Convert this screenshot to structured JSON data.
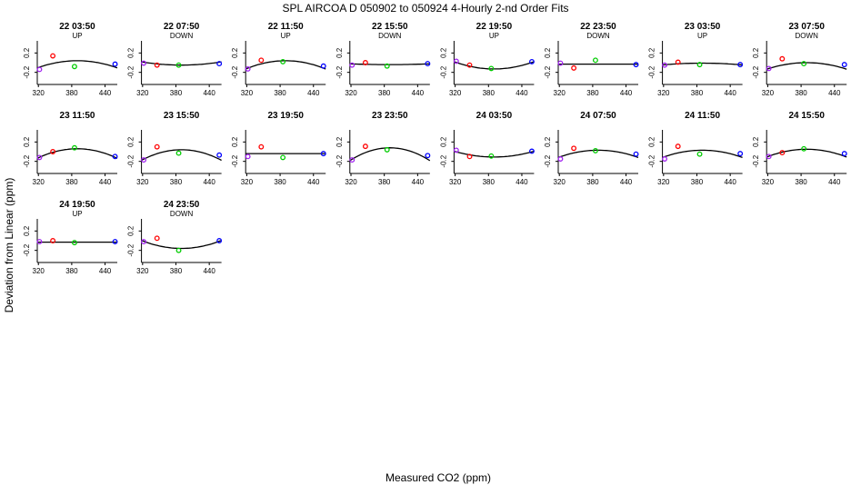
{
  "title": "SPL   AIRCOA D   050902 to 050924   4-Hourly 2-nd Order Fits",
  "xlabel": "Measured CO2 (ppm)",
  "ylabel": "Deviation from Linear (ppm)",
  "colors": {
    "point_1": "#a020f0",
    "point_2": "#ff0000",
    "point_3": "#00cc00",
    "point_4": "#0000ff",
    "curve": "#000000"
  },
  "chart_data": [
    {
      "type": "scatter",
      "title": "22 03:50",
      "subtitle": "UP",
      "x": [
        322,
        346,
        385,
        458
      ],
      "y": [
        -0.14,
        0.14,
        -0.08,
        -0.03
      ],
      "fit": [
        0.04,
        -2.85e-05
      ],
      "xlim": [
        318,
        462
      ],
      "ylim": [
        -0.45,
        0.45
      ],
      "xticks": [
        320,
        380,
        440
      ],
      "yticks": [
        0.2,
        -0.2
      ]
    },
    {
      "type": "scatter",
      "title": "22 07:50",
      "subtitle": "DOWN",
      "x": [
        322,
        346,
        385,
        458
      ],
      "y": [
        -0.01,
        -0.05,
        -0.05,
        -0.02
      ],
      "fit": [
        -0.05,
        1.3e-05
      ],
      "xlim": [
        318,
        462
      ],
      "ylim": [
        -0.45,
        0.45
      ],
      "xticks": [
        320,
        380,
        440
      ],
      "yticks": [
        0.2,
        -0.2
      ]
    },
    {
      "type": "scatter",
      "title": "22 11:50",
      "subtitle": "UP",
      "x": [
        322,
        346,
        385,
        458
      ],
      "y": [
        -0.13,
        0.05,
        0.02,
        -0.07
      ],
      "fit": [
        0.04,
        -3.3e-05
      ],
      "xlim": [
        318,
        462
      ],
      "ylim": [
        -0.45,
        0.45
      ],
      "xticks": [
        320,
        380,
        440
      ],
      "yticks": [
        0.2,
        -0.2
      ]
    },
    {
      "type": "scatter",
      "title": "22 15:50",
      "subtitle": "DOWN",
      "x": [
        322,
        346,
        385,
        458
      ],
      "y": [
        -0.05,
        0.0,
        -0.07,
        -0.02
      ],
      "fit": [
        -0.04,
        3e-06
      ],
      "xlim": [
        318,
        462
      ],
      "ylim": [
        -0.45,
        0.45
      ],
      "xticks": [
        320,
        380,
        440
      ],
      "yticks": [
        0.2,
        -0.2
      ]
    },
    {
      "type": "scatter",
      "title": "22 19:50",
      "subtitle": "UP",
      "x": [
        322,
        346,
        385,
        458
      ],
      "y": [
        0.03,
        -0.05,
        -0.12,
        0.02
      ],
      "fit": [
        -0.13,
        2.9e-05
      ],
      "xlim": [
        318,
        462
      ],
      "ylim": [
        -0.45,
        0.45
      ],
      "xticks": [
        320,
        380,
        440
      ],
      "yticks": [
        0.2,
        -0.2
      ]
    },
    {
      "type": "scatter",
      "title": "22 23:50",
      "subtitle": "DOWN",
      "x": [
        322,
        346,
        385,
        458
      ],
      "y": [
        -0.01,
        -0.11,
        0.05,
        -0.04
      ],
      "fit": [
        -0.03,
        0.0
      ],
      "xlim": [
        318,
        462
      ],
      "ylim": [
        -0.45,
        0.45
      ],
      "xticks": [
        320,
        380,
        440
      ],
      "yticks": [
        0.2,
        -0.2
      ]
    },
    {
      "type": "scatter",
      "title": "23 03:50",
      "subtitle": "UP",
      "x": [
        322,
        346,
        385,
        458
      ],
      "y": [
        -0.05,
        0.01,
        -0.04,
        -0.04
      ],
      "fit": [
        -0.01,
        -7e-06
      ],
      "xlim": [
        318,
        462
      ],
      "ylim": [
        -0.45,
        0.45
      ],
      "xticks": [
        320,
        380,
        440
      ],
      "yticks": [
        0.2,
        -0.2
      ]
    },
    {
      "type": "scatter",
      "title": "23 07:50",
      "subtitle": "DOWN",
      "x": [
        322,
        346,
        385,
        458
      ],
      "y": [
        -0.12,
        0.08,
        -0.02,
        -0.04
      ],
      "fit": [
        0.0,
        -2.6e-05
      ],
      "xlim": [
        318,
        462
      ],
      "ylim": [
        -0.45,
        0.45
      ],
      "xticks": [
        320,
        380,
        440
      ],
      "yticks": [
        0.2,
        -0.2
      ]
    },
    {
      "type": "scatter",
      "title": "23 11:50",
      "subtitle": "",
      "x": [
        322,
        346,
        385,
        458
      ],
      "y": [
        -0.12,
        0.0,
        0.08,
        -0.1
      ],
      "fit": [
        0.06,
        -3.8e-05
      ],
      "xlim": [
        318,
        462
      ],
      "ylim": [
        -0.45,
        0.45
      ],
      "xticks": [
        320,
        380,
        440
      ],
      "yticks": [
        0.2,
        -0.2
      ]
    },
    {
      "type": "scatter",
      "title": "23 15:50",
      "subtitle": "",
      "x": [
        322,
        346,
        385,
        458
      ],
      "y": [
        -0.17,
        0.1,
        -0.03,
        -0.07
      ],
      "fit": [
        0.04,
        -4.2e-05
      ],
      "xlim": [
        318,
        462
      ],
      "ylim": [
        -0.45,
        0.45
      ],
      "xticks": [
        320,
        380,
        440
      ],
      "yticks": [
        0.2,
        -0.2
      ]
    },
    {
      "type": "scatter",
      "title": "23 19:50",
      "subtitle": "",
      "x": [
        322,
        346,
        385,
        458
      ],
      "y": [
        -0.1,
        0.1,
        -0.12,
        -0.04
      ],
      "fit": [
        -0.04,
        0.0
      ],
      "xlim": [
        318,
        462
      ],
      "ylim": [
        -0.45,
        0.45
      ],
      "xticks": [
        320,
        380,
        440
      ],
      "yticks": [
        0.2,
        -0.2
      ]
    },
    {
      "type": "scatter",
      "title": "23 23:50",
      "subtitle": "",
      "x": [
        322,
        346,
        385,
        458
      ],
      "y": [
        -0.17,
        0.11,
        0.04,
        -0.08
      ],
      "fit": [
        0.08,
        -5.1e-05
      ],
      "xlim": [
        318,
        462
      ],
      "ylim": [
        -0.45,
        0.45
      ],
      "xticks": [
        320,
        380,
        440
      ],
      "yticks": [
        0.2,
        -0.2
      ]
    },
    {
      "type": "scatter",
      "title": "24 03:50",
      "subtitle": "",
      "x": [
        322,
        346,
        385,
        458
      ],
      "y": [
        0.03,
        -0.1,
        -0.09,
        0.01
      ],
      "fit": [
        -0.11,
        2.3e-05
      ],
      "xlim": [
        318,
        462
      ],
      "ylim": [
        -0.45,
        0.45
      ],
      "xticks": [
        320,
        380,
        440
      ],
      "yticks": [
        0.2,
        -0.2
      ]
    },
    {
      "type": "scatter",
      "title": "24 07:50",
      "subtitle": "",
      "x": [
        322,
        346,
        385,
        458
      ],
      "y": [
        -0.15,
        0.07,
        0.02,
        -0.05
      ],
      "fit": [
        0.03,
        -2.9e-05
      ],
      "xlim": [
        318,
        462
      ],
      "ylim": [
        -0.45,
        0.45
      ],
      "xticks": [
        320,
        380,
        440
      ],
      "yticks": [
        0.2,
        -0.2
      ]
    },
    {
      "type": "scatter",
      "title": "24 11:50",
      "subtitle": "",
      "x": [
        322,
        346,
        385,
        458
      ],
      "y": [
        -0.15,
        0.11,
        -0.05,
        -0.04
      ],
      "fit": [
        0.03,
        -2.9e-05
      ],
      "xlim": [
        318,
        462
      ],
      "ylim": [
        -0.45,
        0.45
      ],
      "xticks": [
        320,
        380,
        440
      ],
      "yticks": [
        0.2,
        -0.2
      ]
    },
    {
      "type": "scatter",
      "title": "24 15:50",
      "subtitle": "",
      "x": [
        322,
        346,
        385,
        458
      ],
      "y": [
        -0.1,
        -0.02,
        0.06,
        -0.04
      ],
      "fit": [
        0.05,
        -3.1e-05
      ],
      "xlim": [
        318,
        462
      ],
      "ylim": [
        -0.45,
        0.45
      ],
      "xticks": [
        320,
        380,
        440
      ],
      "yticks": [
        0.2,
        -0.2
      ]
    },
    {
      "type": "scatter",
      "title": "24 19:50",
      "subtitle": "UP",
      "x": [
        322,
        346,
        385,
        458
      ],
      "y": [
        -0.02,
        0.0,
        -0.04,
        -0.02
      ],
      "fit": [
        -0.03,
        0.0
      ],
      "xlim": [
        318,
        462
      ],
      "ylim": [
        -0.45,
        0.45
      ],
      "xticks": [
        320,
        380,
        440
      ],
      "yticks": [
        0.2,
        -0.2
      ]
    },
    {
      "type": "scatter",
      "title": "24 23:50",
      "subtitle": "DOWN",
      "x": [
        322,
        346,
        385,
        458
      ],
      "y": [
        -0.02,
        0.05,
        -0.2,
        0.0
      ],
      "fit": [
        -0.16,
        3.2e-05
      ],
      "xlim": [
        318,
        462
      ],
      "ylim": [
        -0.45,
        0.45
      ],
      "xticks": [
        320,
        380,
        440
      ],
      "yticks": [
        0.2,
        -0.2
      ]
    }
  ]
}
